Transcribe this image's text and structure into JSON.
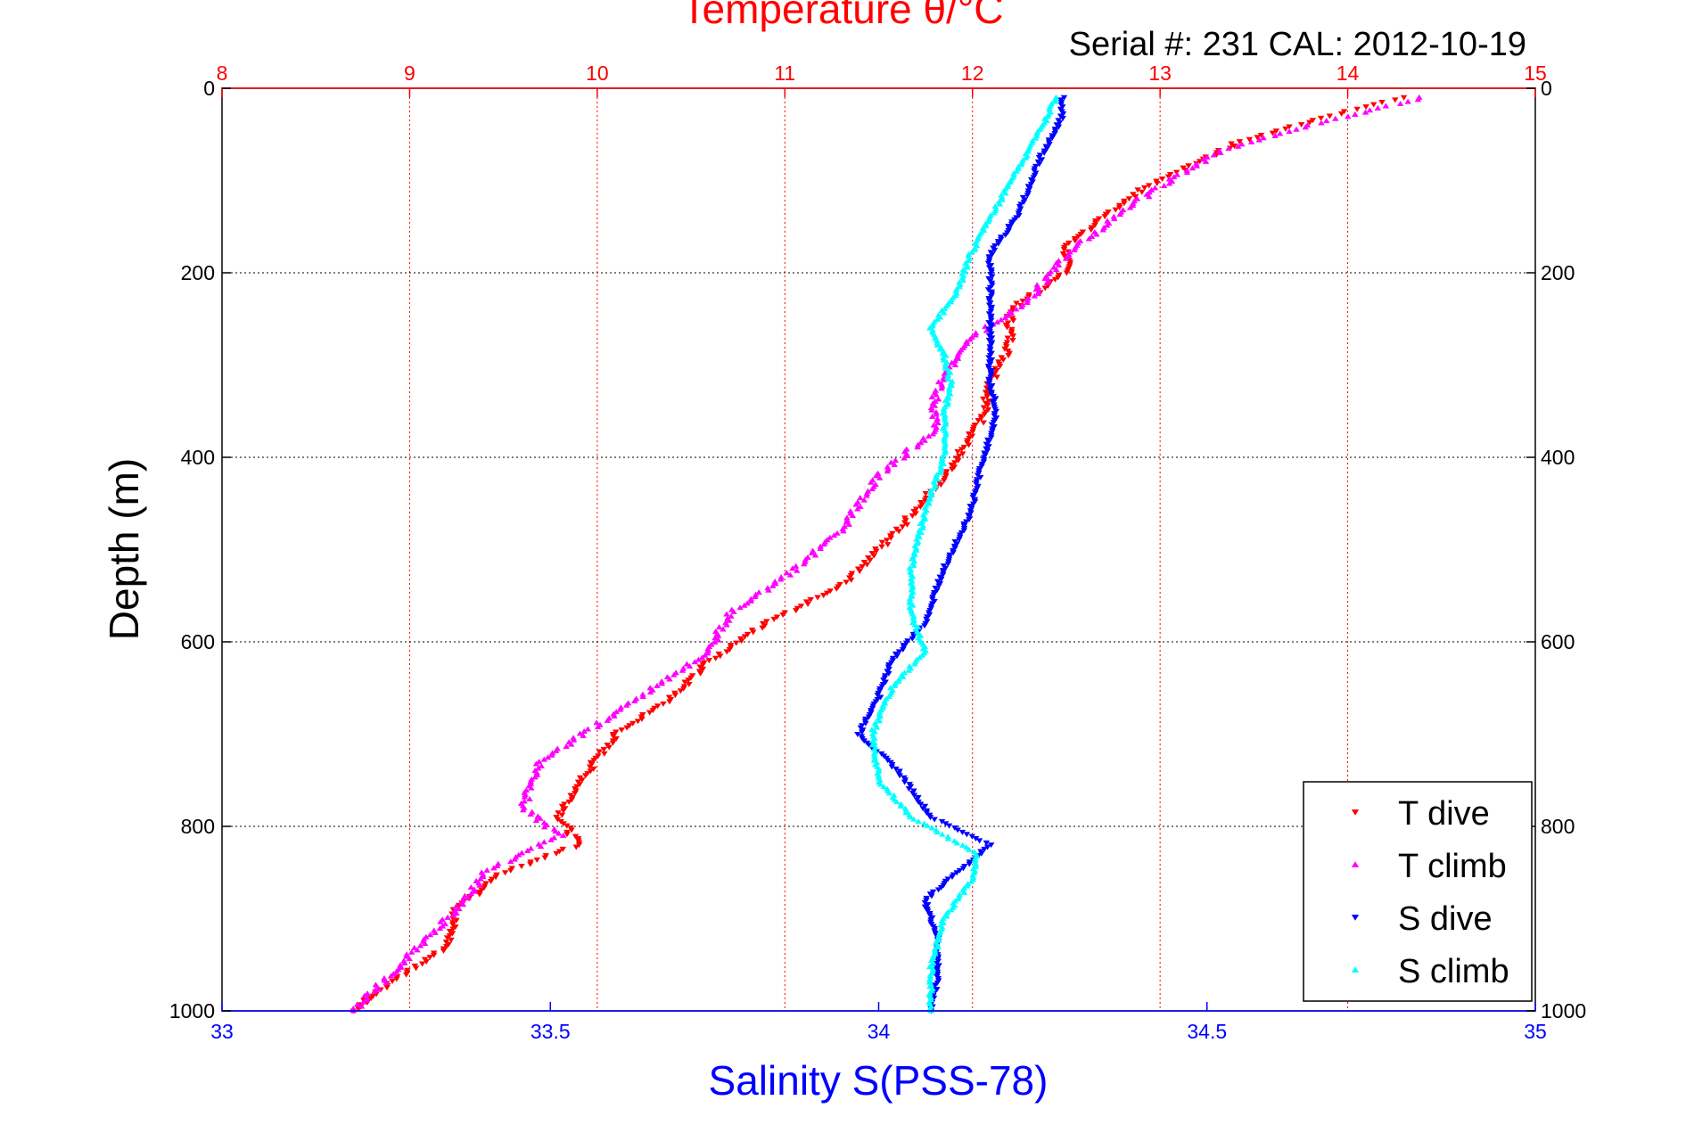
{
  "chart_data": {
    "type": "scatter",
    "title": "Temperature θ/°C",
    "subtitle": "Serial #: 231   CAL: 2012-10-19",
    "xlabel": "Salinity S(PSS-78)",
    "ylabel": "Depth (m)",
    "top_axis": {
      "label": "Temperature θ/°C",
      "range": [
        8,
        15
      ],
      "ticks": [
        "8",
        "9",
        "10",
        "11",
        "12",
        "13",
        "14",
        "15"
      ],
      "color": "#ff0000"
    },
    "bottom_axis": {
      "label": "Salinity S(PSS-78)",
      "range": [
        33,
        35
      ],
      "ticks": [
        "33",
        "33.5",
        "34",
        "34.5",
        "35"
      ],
      "color": "#0000ff"
    },
    "y_axis": {
      "range": [
        0,
        1000
      ],
      "reversed": true,
      "ticks": [
        "0",
        "200",
        "400",
        "600",
        "800",
        "1000"
      ]
    },
    "grid": true,
    "legend_position": "bottom-right",
    "series": [
      {
        "name": "T dive",
        "axis": "top",
        "color": "#ff0000",
        "marker": "down-triangle",
        "points": [
          [
            14.3,
            10
          ],
          [
            13.9,
            30
          ],
          [
            13.4,
            60
          ],
          [
            12.9,
            110
          ],
          [
            12.5,
            170
          ],
          [
            12.5,
            200
          ],
          [
            12.2,
            240
          ],
          [
            12.2,
            280
          ],
          [
            12.1,
            320
          ],
          [
            12.05,
            360
          ],
          [
            11.85,
            420
          ],
          [
            11.6,
            480
          ],
          [
            11.3,
            540
          ],
          [
            10.9,
            580
          ],
          [
            10.6,
            620
          ],
          [
            10.4,
            660
          ],
          [
            10.1,
            700
          ],
          [
            9.95,
            740
          ],
          [
            9.8,
            790
          ],
          [
            9.9,
            820
          ],
          [
            9.5,
            850
          ],
          [
            9.25,
            890
          ],
          [
            9.2,
            930
          ],
          [
            8.9,
            970
          ],
          [
            8.7,
            1000
          ]
        ]
      },
      {
        "name": "T climb",
        "axis": "top",
        "color": "#ff00ff",
        "marker": "up-triangle",
        "points": [
          [
            14.4,
            10
          ],
          [
            13.8,
            40
          ],
          [
            13.3,
            70
          ],
          [
            12.9,
            120
          ],
          [
            12.5,
            180
          ],
          [
            12.3,
            230
          ],
          [
            12.0,
            270
          ],
          [
            11.9,
            300
          ],
          [
            11.8,
            330
          ],
          [
            11.8,
            370
          ],
          [
            11.5,
            420
          ],
          [
            11.3,
            480
          ],
          [
            11.0,
            530
          ],
          [
            10.7,
            570
          ],
          [
            10.6,
            610
          ],
          [
            10.3,
            650
          ],
          [
            10.0,
            690
          ],
          [
            9.7,
            730
          ],
          [
            9.6,
            780
          ],
          [
            9.8,
            810
          ],
          [
            9.4,
            850
          ],
          [
            9.3,
            880
          ],
          [
            9.1,
            920
          ],
          [
            8.9,
            960
          ],
          [
            8.7,
            1000
          ]
        ]
      },
      {
        "name": "S dive",
        "axis": "bottom",
        "color": "#0000ff",
        "marker": "down-triangle",
        "points": [
          [
            34.28,
            10
          ],
          [
            34.28,
            30
          ],
          [
            34.25,
            70
          ],
          [
            34.21,
            140
          ],
          [
            34.17,
            180
          ],
          [
            34.17,
            230
          ],
          [
            34.17,
            280
          ],
          [
            34.17,
            320
          ],
          [
            34.18,
            350
          ],
          [
            34.16,
            400
          ],
          [
            34.14,
            460
          ],
          [
            34.1,
            520
          ],
          [
            34.07,
            580
          ],
          [
            34.02,
            620
          ],
          [
            34.0,
            660
          ],
          [
            33.97,
            700
          ],
          [
            34.03,
            740
          ],
          [
            34.08,
            790
          ],
          [
            34.17,
            820
          ],
          [
            34.12,
            850
          ],
          [
            34.07,
            880
          ],
          [
            34.09,
            920
          ],
          [
            34.09,
            960
          ],
          [
            34.08,
            1000
          ]
        ]
      },
      {
        "name": "S climb",
        "axis": "bottom",
        "color": "#00ffff",
        "marker": "up-triangle",
        "points": [
          [
            34.27,
            10
          ],
          [
            34.25,
            40
          ],
          [
            34.21,
            90
          ],
          [
            34.17,
            140
          ],
          [
            34.14,
            180
          ],
          [
            34.12,
            220
          ],
          [
            34.08,
            260
          ],
          [
            34.1,
            290
          ],
          [
            34.11,
            320
          ],
          [
            34.1,
            350
          ],
          [
            34.1,
            400
          ],
          [
            34.07,
            460
          ],
          [
            34.05,
            520
          ],
          [
            34.05,
            570
          ],
          [
            34.07,
            610
          ],
          [
            34.02,
            650
          ],
          [
            33.99,
            700
          ],
          [
            34.0,
            750
          ],
          [
            34.05,
            790
          ],
          [
            34.15,
            830
          ],
          [
            34.14,
            860
          ],
          [
            34.1,
            900
          ],
          [
            34.08,
            950
          ],
          [
            34.08,
            1000
          ]
        ]
      }
    ]
  }
}
